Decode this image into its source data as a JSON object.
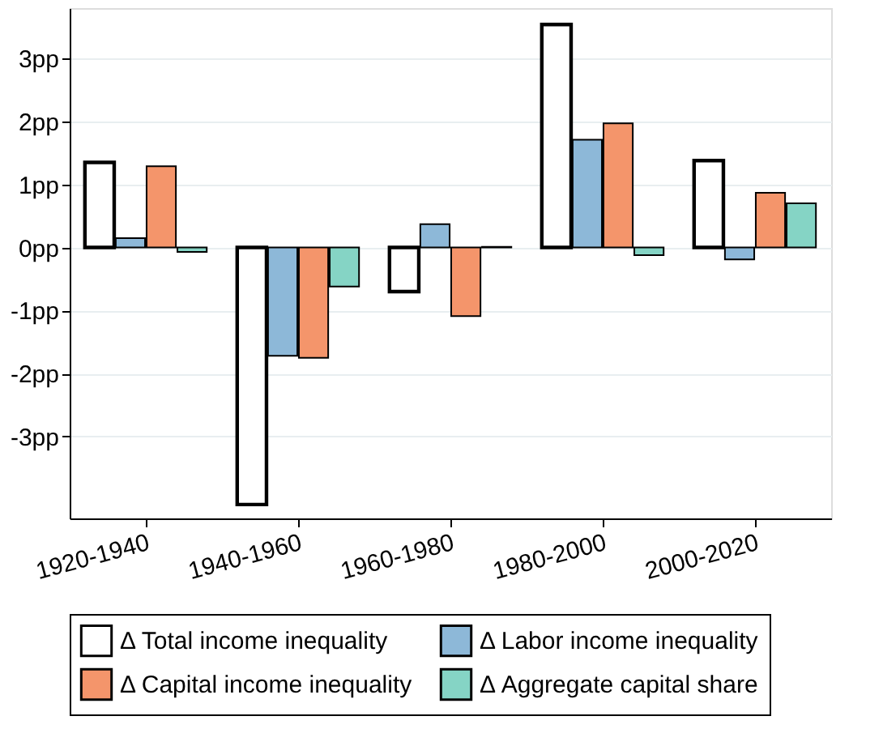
{
  "chart_data": {
    "type": "bar",
    "categories": [
      "1920-1940",
      "1940-1960",
      "1960-1980",
      "1980-2000",
      "2000-2020"
    ],
    "series": [
      {
        "name": "Δ Total income inequality",
        "color": "#ffffff",
        "values": [
          1.35,
          -4.08,
          -0.7,
          3.54,
          1.38
        ]
      },
      {
        "name": "Δ Labor income inequality",
        "color": "#8db8d8",
        "values": [
          0.15,
          -1.72,
          0.37,
          1.71,
          -0.19
        ]
      },
      {
        "name": "Δ Capital income inequality",
        "color": "#f4956b",
        "values": [
          1.29,
          -1.75,
          -1.09,
          1.97,
          0.87
        ]
      },
      {
        "name": "Δ Aggregate capital share",
        "color": "#85d4c5",
        "values": [
          -0.07,
          -0.62,
          0.01,
          -0.12,
          0.7
        ]
      }
    ],
    "ylim": [
      -4.3,
      3.8
    ],
    "yticks": [
      {
        "value": -3,
        "label": "-3pp"
      },
      {
        "value": -2,
        "label": "-2pp"
      },
      {
        "value": -1,
        "label": "-1pp"
      },
      {
        "value": 0,
        "label": "0pp"
      },
      {
        "value": 1,
        "label": "1pp"
      },
      {
        "value": 2,
        "label": "2pp"
      },
      {
        "value": 3,
        "label": "3pp"
      }
    ],
    "grid": "y",
    "legend": "bottom"
  }
}
